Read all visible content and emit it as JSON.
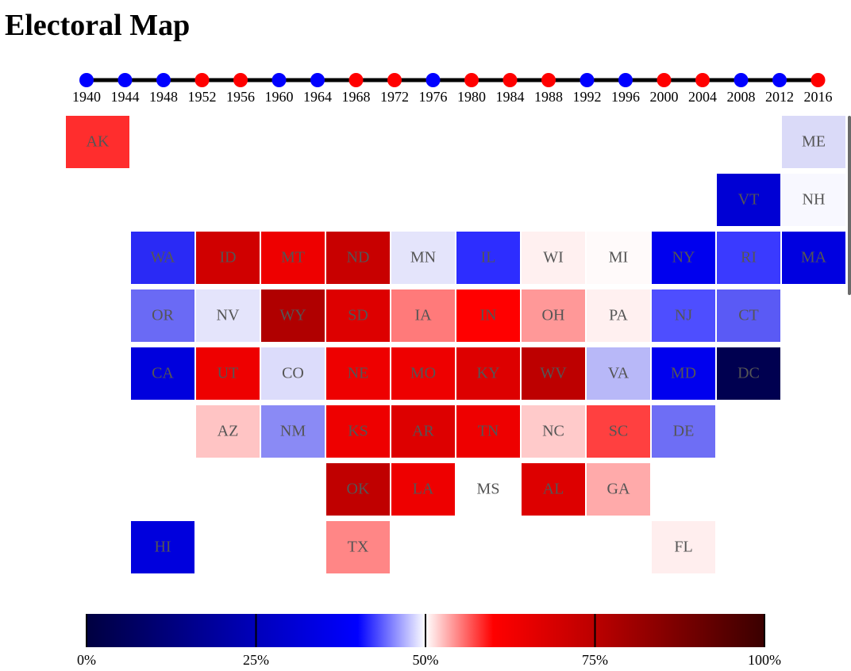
{
  "title": "Electoral Map",
  "chart_data": {
    "type": "heatmap",
    "years": [
      {
        "year": "1940",
        "winner": "blue"
      },
      {
        "year": "1944",
        "winner": "blue"
      },
      {
        "year": "1948",
        "winner": "blue"
      },
      {
        "year": "1952",
        "winner": "red"
      },
      {
        "year": "1956",
        "winner": "red"
      },
      {
        "year": "1960",
        "winner": "blue"
      },
      {
        "year": "1964",
        "winner": "blue"
      },
      {
        "year": "1968",
        "winner": "red"
      },
      {
        "year": "1972",
        "winner": "red"
      },
      {
        "year": "1976",
        "winner": "blue"
      },
      {
        "year": "1980",
        "winner": "red"
      },
      {
        "year": "1984",
        "winner": "red"
      },
      {
        "year": "1988",
        "winner": "red"
      },
      {
        "year": "1992",
        "winner": "blue"
      },
      {
        "year": "1996",
        "winner": "blue"
      },
      {
        "year": "2000",
        "winner": "red"
      },
      {
        "year": "2004",
        "winner": "red"
      },
      {
        "year": "2008",
        "winner": "blue"
      },
      {
        "year": "2012",
        "winner": "blue"
      },
      {
        "year": "2016",
        "winner": "red"
      }
    ],
    "states": [
      {
        "abbr": "AK",
        "row": 0,
        "col": 1,
        "color": "#ff2d2d"
      },
      {
        "abbr": "ME",
        "row": 0,
        "col": 12,
        "color": "#dadaf8"
      },
      {
        "abbr": "VT",
        "row": 1,
        "col": 11,
        "color": "#0000d4"
      },
      {
        "abbr": "NH",
        "row": 1,
        "col": 12,
        "color": "#f8f8ff"
      },
      {
        "abbr": "WA",
        "row": 2,
        "col": 2,
        "color": "#2a2af5"
      },
      {
        "abbr": "ID",
        "row": 2,
        "col": 3,
        "color": "#d00000"
      },
      {
        "abbr": "MT",
        "row": 2,
        "col": 4,
        "color": "#ee0000"
      },
      {
        "abbr": "ND",
        "row": 2,
        "col": 5,
        "color": "#c80000"
      },
      {
        "abbr": "MN",
        "row": 2,
        "col": 6,
        "color": "#e4e4fb"
      },
      {
        "abbr": "IL",
        "row": 2,
        "col": 7,
        "color": "#2d2dff"
      },
      {
        "abbr": "WI",
        "row": 2,
        "col": 8,
        "color": "#fff0f0"
      },
      {
        "abbr": "MI",
        "row": 2,
        "col": 9,
        "color": "#fffafa"
      },
      {
        "abbr": "NY",
        "row": 2,
        "col": 10,
        "color": "#0000ee"
      },
      {
        "abbr": "RI",
        "row": 2,
        "col": 11,
        "color": "#3a3aff"
      },
      {
        "abbr": "MA",
        "row": 2,
        "col": 12,
        "color": "#0000e0"
      },
      {
        "abbr": "OR",
        "row": 3,
        "col": 2,
        "color": "#6a6af5"
      },
      {
        "abbr": "NV",
        "row": 3,
        "col": 3,
        "color": "#e4e4fb"
      },
      {
        "abbr": "WY",
        "row": 3,
        "col": 4,
        "color": "#b00000"
      },
      {
        "abbr": "SD",
        "row": 3,
        "col": 5,
        "color": "#dd0000"
      },
      {
        "abbr": "IA",
        "row": 3,
        "col": 6,
        "color": "#ff7a7a"
      },
      {
        "abbr": "IN",
        "row": 3,
        "col": 7,
        "color": "#ff0000"
      },
      {
        "abbr": "OH",
        "row": 3,
        "col": 8,
        "color": "#ff9898"
      },
      {
        "abbr": "PA",
        "row": 3,
        "col": 9,
        "color": "#fff0f0"
      },
      {
        "abbr": "NJ",
        "row": 3,
        "col": 10,
        "color": "#4e4eff"
      },
      {
        "abbr": "CT",
        "row": 3,
        "col": 11,
        "color": "#5a5af5"
      },
      {
        "abbr": "CA",
        "row": 4,
        "col": 2,
        "color": "#0000dd"
      },
      {
        "abbr": "UT",
        "row": 4,
        "col": 3,
        "color": "#ee0000"
      },
      {
        "abbr": "CO",
        "row": 4,
        "col": 4,
        "color": "#dcdcfb"
      },
      {
        "abbr": "NE",
        "row": 4,
        "col": 5,
        "color": "#ee0000"
      },
      {
        "abbr": "MO",
        "row": 4,
        "col": 6,
        "color": "#ee0000"
      },
      {
        "abbr": "KY",
        "row": 4,
        "col": 7,
        "color": "#dd0000"
      },
      {
        "abbr": "WV",
        "row": 4,
        "col": 8,
        "color": "#bd0000"
      },
      {
        "abbr": "VA",
        "row": 4,
        "col": 9,
        "color": "#b8b8f8"
      },
      {
        "abbr": "MD",
        "row": 4,
        "col": 10,
        "color": "#0000ee"
      },
      {
        "abbr": "DC",
        "row": 4,
        "col": 11,
        "color": "#000050"
      },
      {
        "abbr": "AZ",
        "row": 5,
        "col": 3,
        "color": "#ffc4c4"
      },
      {
        "abbr": "NM",
        "row": 5,
        "col": 4,
        "color": "#8a8af5"
      },
      {
        "abbr": "KS",
        "row": 5,
        "col": 5,
        "color": "#ee0000"
      },
      {
        "abbr": "AR",
        "row": 5,
        "col": 6,
        "color": "#dd0000"
      },
      {
        "abbr": "TN",
        "row": 5,
        "col": 7,
        "color": "#ee0000"
      },
      {
        "abbr": "NC",
        "row": 5,
        "col": 8,
        "color": "#ffcaca"
      },
      {
        "abbr": "SC",
        "row": 5,
        "col": 9,
        "color": "#ff4040"
      },
      {
        "abbr": "DE",
        "row": 5,
        "col": 10,
        "color": "#6e6ef5"
      },
      {
        "abbr": "OK",
        "row": 6,
        "col": 5,
        "color": "#c00000"
      },
      {
        "abbr": "LA",
        "row": 6,
        "col": 6,
        "color": "#ee0000"
      },
      {
        "abbr": "MS",
        "row": 6,
        "col": 7,
        "color": "#ffffff"
      },
      {
        "abbr": "AL",
        "row": 6,
        "col": 8,
        "color": "#dd0000"
      },
      {
        "abbr": "GA",
        "row": 6,
        "col": 9,
        "color": "#ffaaaa"
      },
      {
        "abbr": "HI",
        "row": 7,
        "col": 2,
        "color": "#0000dd"
      },
      {
        "abbr": "TX",
        "row": 7,
        "col": 5,
        "color": "#ff8686"
      },
      {
        "abbr": "FL",
        "row": 7,
        "col": 10,
        "color": "#ffeeee"
      }
    ],
    "legend": {
      "ticks": [
        "0%",
        "25%",
        "50%",
        "75%",
        "100%"
      ],
      "tick_values": [
        0,
        25,
        50,
        75,
        100
      ],
      "gradient": [
        {
          "stop": 0,
          "color": "#000040"
        },
        {
          "stop": 25,
          "color": "#0000bb"
        },
        {
          "stop": 40,
          "color": "#0000ff"
        },
        {
          "stop": 50,
          "color": "#ffffff"
        },
        {
          "stop": 60,
          "color": "#ff0000"
        },
        {
          "stop": 75,
          "color": "#bb0000"
        },
        {
          "stop": 100,
          "color": "#3a0000"
        }
      ]
    }
  }
}
